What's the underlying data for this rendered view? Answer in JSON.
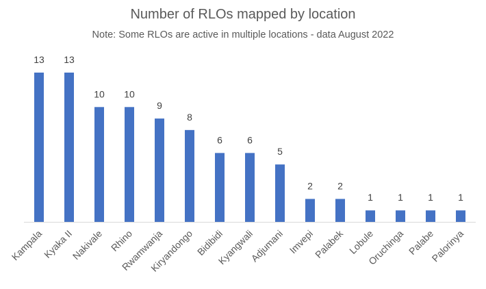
{
  "chart_data": {
    "type": "bar",
    "title": "Number of RLOs mapped by location",
    "subtitle": "Note: Some RLOs are active in multiple locations - data August 2022",
    "categories": [
      "Kampala",
      "Kyaka II",
      "Nakivale",
      "Rhino",
      "Rwamwanja",
      "Kiryandongo",
      "Bidibidi",
      "Kyangwali",
      "Adjumani",
      "Imvepi",
      "Palabek",
      "Lobule",
      "Oruchinga",
      "Palabe",
      "Palorinya"
    ],
    "values": [
      13,
      13,
      10,
      10,
      9,
      8,
      6,
      6,
      5,
      2,
      2,
      1,
      1,
      1,
      1
    ],
    "xlabel": "",
    "ylabel": "",
    "ylim": [
      0,
      13
    ],
    "grid": false,
    "legend": "none",
    "data_labels": true,
    "colors": {
      "bar": "#4472C4",
      "axis": "#D9D9D9",
      "text": "#595959"
    }
  }
}
